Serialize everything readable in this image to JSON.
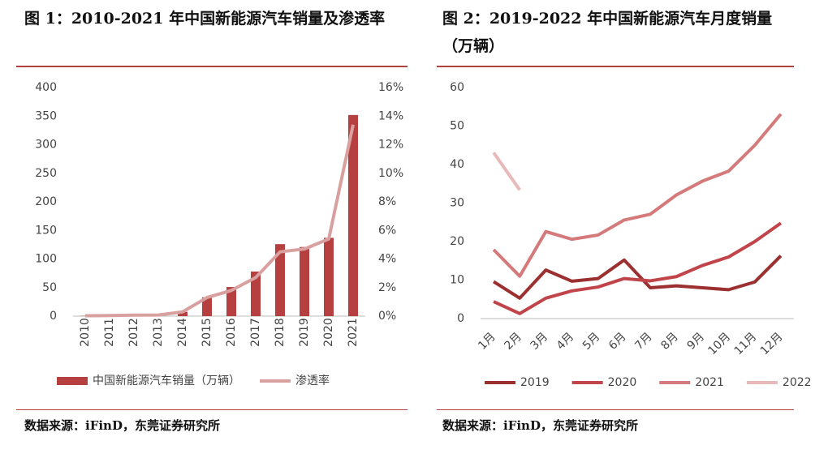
{
  "chart_data": [
    {
      "type": "bar",
      "title": "图 1：2010-2021 年中国新能源汽车销量及渗透率",
      "source": "数据来源：iFinD，东莞证券研究所",
      "categories": [
        "2010",
        "2011",
        "2012",
        "2013",
        "2014",
        "2015",
        "2016",
        "2017",
        "2018",
        "2019",
        "2020",
        "2021"
      ],
      "series": [
        {
          "name": "中国新能源汽车销量（万辆）",
          "color": "#b5403f",
          "type": "bar",
          "values": [
            0.5,
            0.8,
            1.3,
            1.8,
            7.5,
            33,
            51,
            78,
            126,
            121,
            137,
            352
          ]
        },
        {
          "name": "渗透率",
          "color": "#d9a0a0",
          "type": "line",
          "axis": "y2",
          "values": [
            0.03,
            0.04,
            0.07,
            0.08,
            0.3,
            1.3,
            1.8,
            2.7,
            4.5,
            4.7,
            5.4,
            13.4
          ]
        }
      ],
      "ylim": [
        0,
        400
      ],
      "yticks": [
        0,
        50,
        100,
        150,
        200,
        250,
        300,
        350,
        400
      ],
      "y2lim": [
        0,
        16
      ],
      "y2ticks": [
        {
          "value": 0,
          "label": "0%"
        },
        {
          "value": 2,
          "label": "2%"
        },
        {
          "value": 4,
          "label": "4%"
        },
        {
          "value": 6,
          "label": "6%"
        },
        {
          "value": 8,
          "label": "8%"
        },
        {
          "value": 10,
          "label": "10%"
        },
        {
          "value": 12,
          "label": "12%"
        },
        {
          "value": 14,
          "label": "14%"
        },
        {
          "value": 16,
          "label": "16%"
        }
      ],
      "legend": "bottom"
    },
    {
      "type": "line",
      "title": "图 2：2019-2022 年中国新能源汽车月度销量（万辆）",
      "source": "数据来源：iFinD，东莞证券研究所",
      "categories": [
        "1月",
        "2月",
        "3月",
        "4月",
        "5月",
        "6月",
        "7月",
        "8月",
        "9月",
        "10月",
        "11月",
        "12月"
      ],
      "series": [
        {
          "name": "2019",
          "color": "#9c2f2f",
          "values": [
            9.6,
            5.3,
            12.6,
            9.7,
            10.4,
            15.2,
            8.0,
            8.5,
            8.0,
            7.5,
            9.5,
            16.3
          ]
        },
        {
          "name": "2020",
          "color": "#c0444a",
          "values": [
            4.4,
            1.3,
            5.3,
            7.2,
            8.2,
            10.4,
            9.8,
            10.9,
            13.8,
            16.0,
            20.0,
            24.8
          ]
        },
        {
          "name": "2021",
          "color": "#d47a7a",
          "values": [
            17.9,
            11.0,
            22.6,
            20.6,
            21.7,
            25.6,
            27.1,
            32.1,
            35.7,
            38.3,
            45.0,
            53.1
          ]
        },
        {
          "name": "2022",
          "color": "#e8b9b9",
          "values": [
            43.1,
            33.4,
            null,
            null,
            null,
            null,
            null,
            null,
            null,
            null,
            null,
            null
          ]
        }
      ],
      "ylim": [
        0,
        60
      ],
      "yticks": [
        0,
        10,
        20,
        30,
        40,
        50,
        60
      ],
      "legend": "bottom"
    }
  ]
}
